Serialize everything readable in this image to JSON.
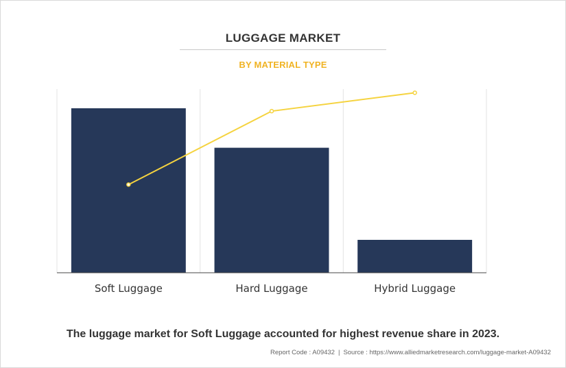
{
  "header": {
    "title": "LUGGAGE MARKET",
    "subtitle": "BY MATERIAL TYPE"
  },
  "chart_data": {
    "type": "bar",
    "categories": [
      "Soft Luggage",
      "Hard Luggage",
      "Hybrid Luggage"
    ],
    "series": [
      {
        "type": "bar",
        "values": [
          100,
          76,
          20
        ],
        "color": "#263859"
      },
      {
        "type": "line",
        "values": [
          48,
          88,
          98
        ],
        "color": "#f5d33f"
      }
    ],
    "ylim": [
      0,
      100
    ],
    "xlabel": "",
    "ylabel": "",
    "grid": "vertical",
    "legend": "none"
  },
  "caption": "The luggage market for Soft Luggage accounted for highest revenue share in 2023.",
  "footer": {
    "report_code": "Report Code : A09432",
    "separator": "|",
    "source": "Source : https://www.alliedmarketresearch.com/luggage-market-A09432"
  }
}
